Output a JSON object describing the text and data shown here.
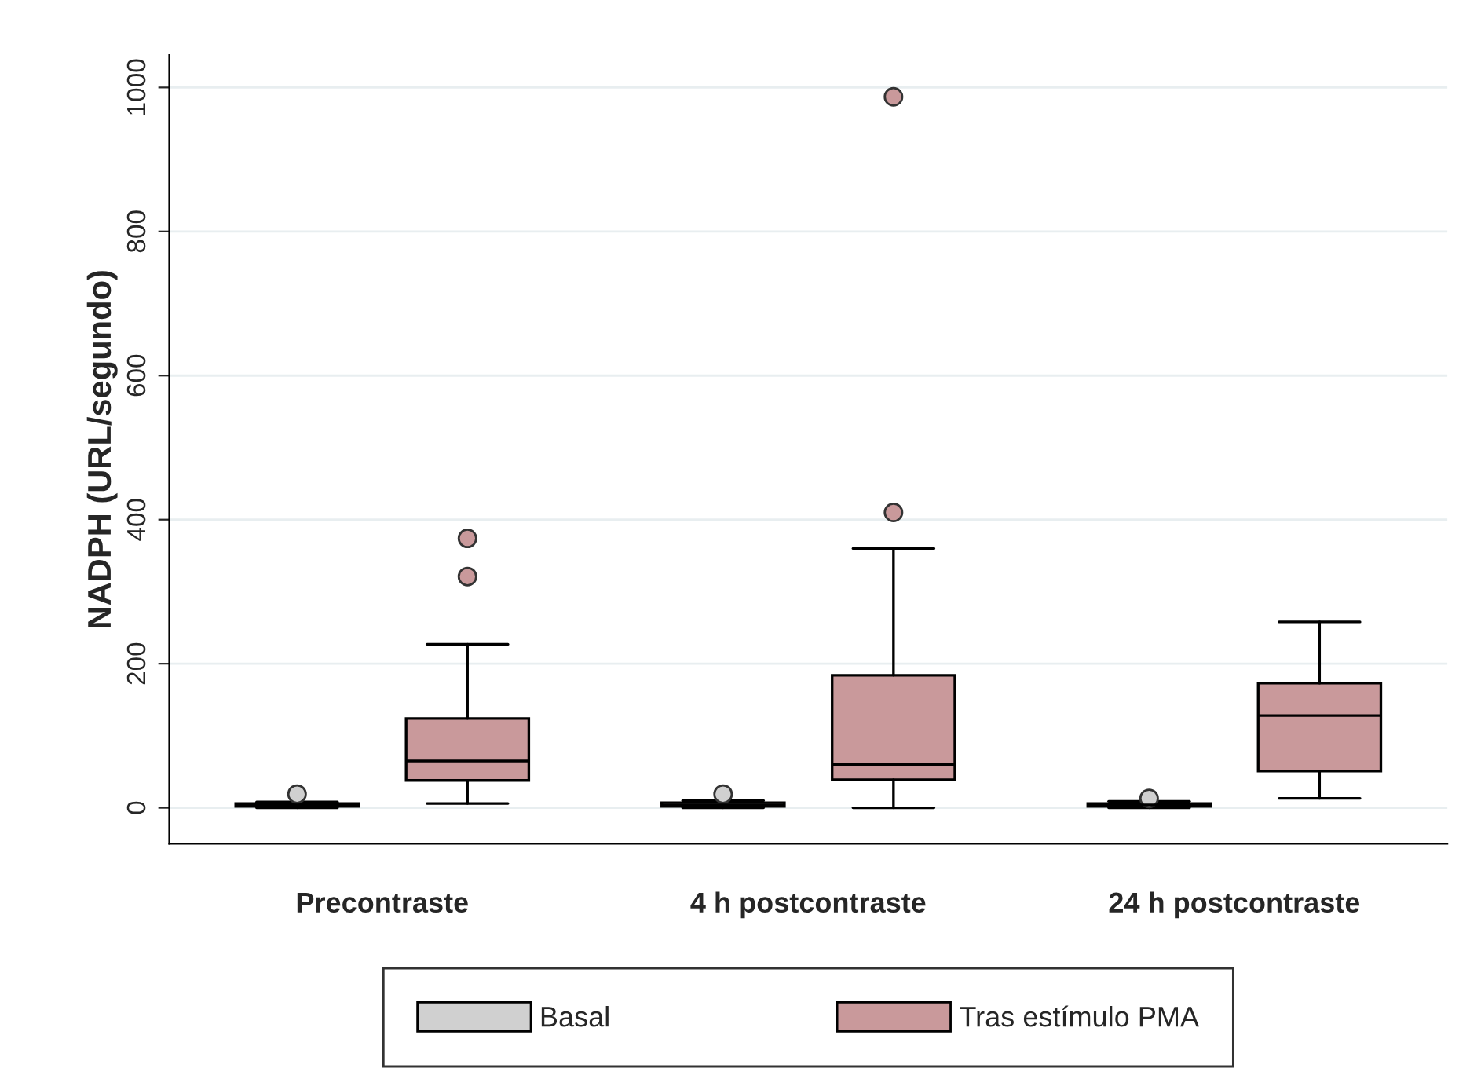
{
  "chart_data": {
    "type": "box",
    "ylabel": "NADPH (URL/segundo)",
    "categories": [
      "Precontraste",
      "4 h postcontraste",
      "24 h postcontraste"
    ],
    "ylim": [
      -50,
      1045
    ],
    "yticks": [
      0,
      200,
      400,
      600,
      800,
      1000
    ],
    "grid": "y",
    "legend": "bottom",
    "series": [
      {
        "name": "Basal",
        "color": "#d0d0d0",
        "boxes": [
          {
            "low": 0,
            "q1": 2,
            "median": 4,
            "q3": 6,
            "high": 8,
            "outliers": [
              19
            ]
          },
          {
            "low": 0,
            "q1": 2,
            "median": 4,
            "q3": 7,
            "high": 10,
            "outliers": [
              19
            ]
          },
          {
            "low": 0,
            "q1": 2,
            "median": 4,
            "q3": 6,
            "high": 9,
            "outliers": [
              13
            ]
          }
        ]
      },
      {
        "name": "Tras estímulo PMA",
        "color": "#c9999b",
        "boxes": [
          {
            "low": 6,
            "q1": 38,
            "median": 65,
            "q3": 124,
            "high": 227,
            "outliers": [
              321,
              374
            ]
          },
          {
            "low": 0,
            "q1": 39,
            "median": 60,
            "q3": 184,
            "high": 360,
            "outliers": [
              410,
              987
            ]
          },
          {
            "low": 13,
            "q1": 51,
            "median": 128,
            "q3": 173,
            "high": 258
          }
        ]
      }
    ]
  }
}
